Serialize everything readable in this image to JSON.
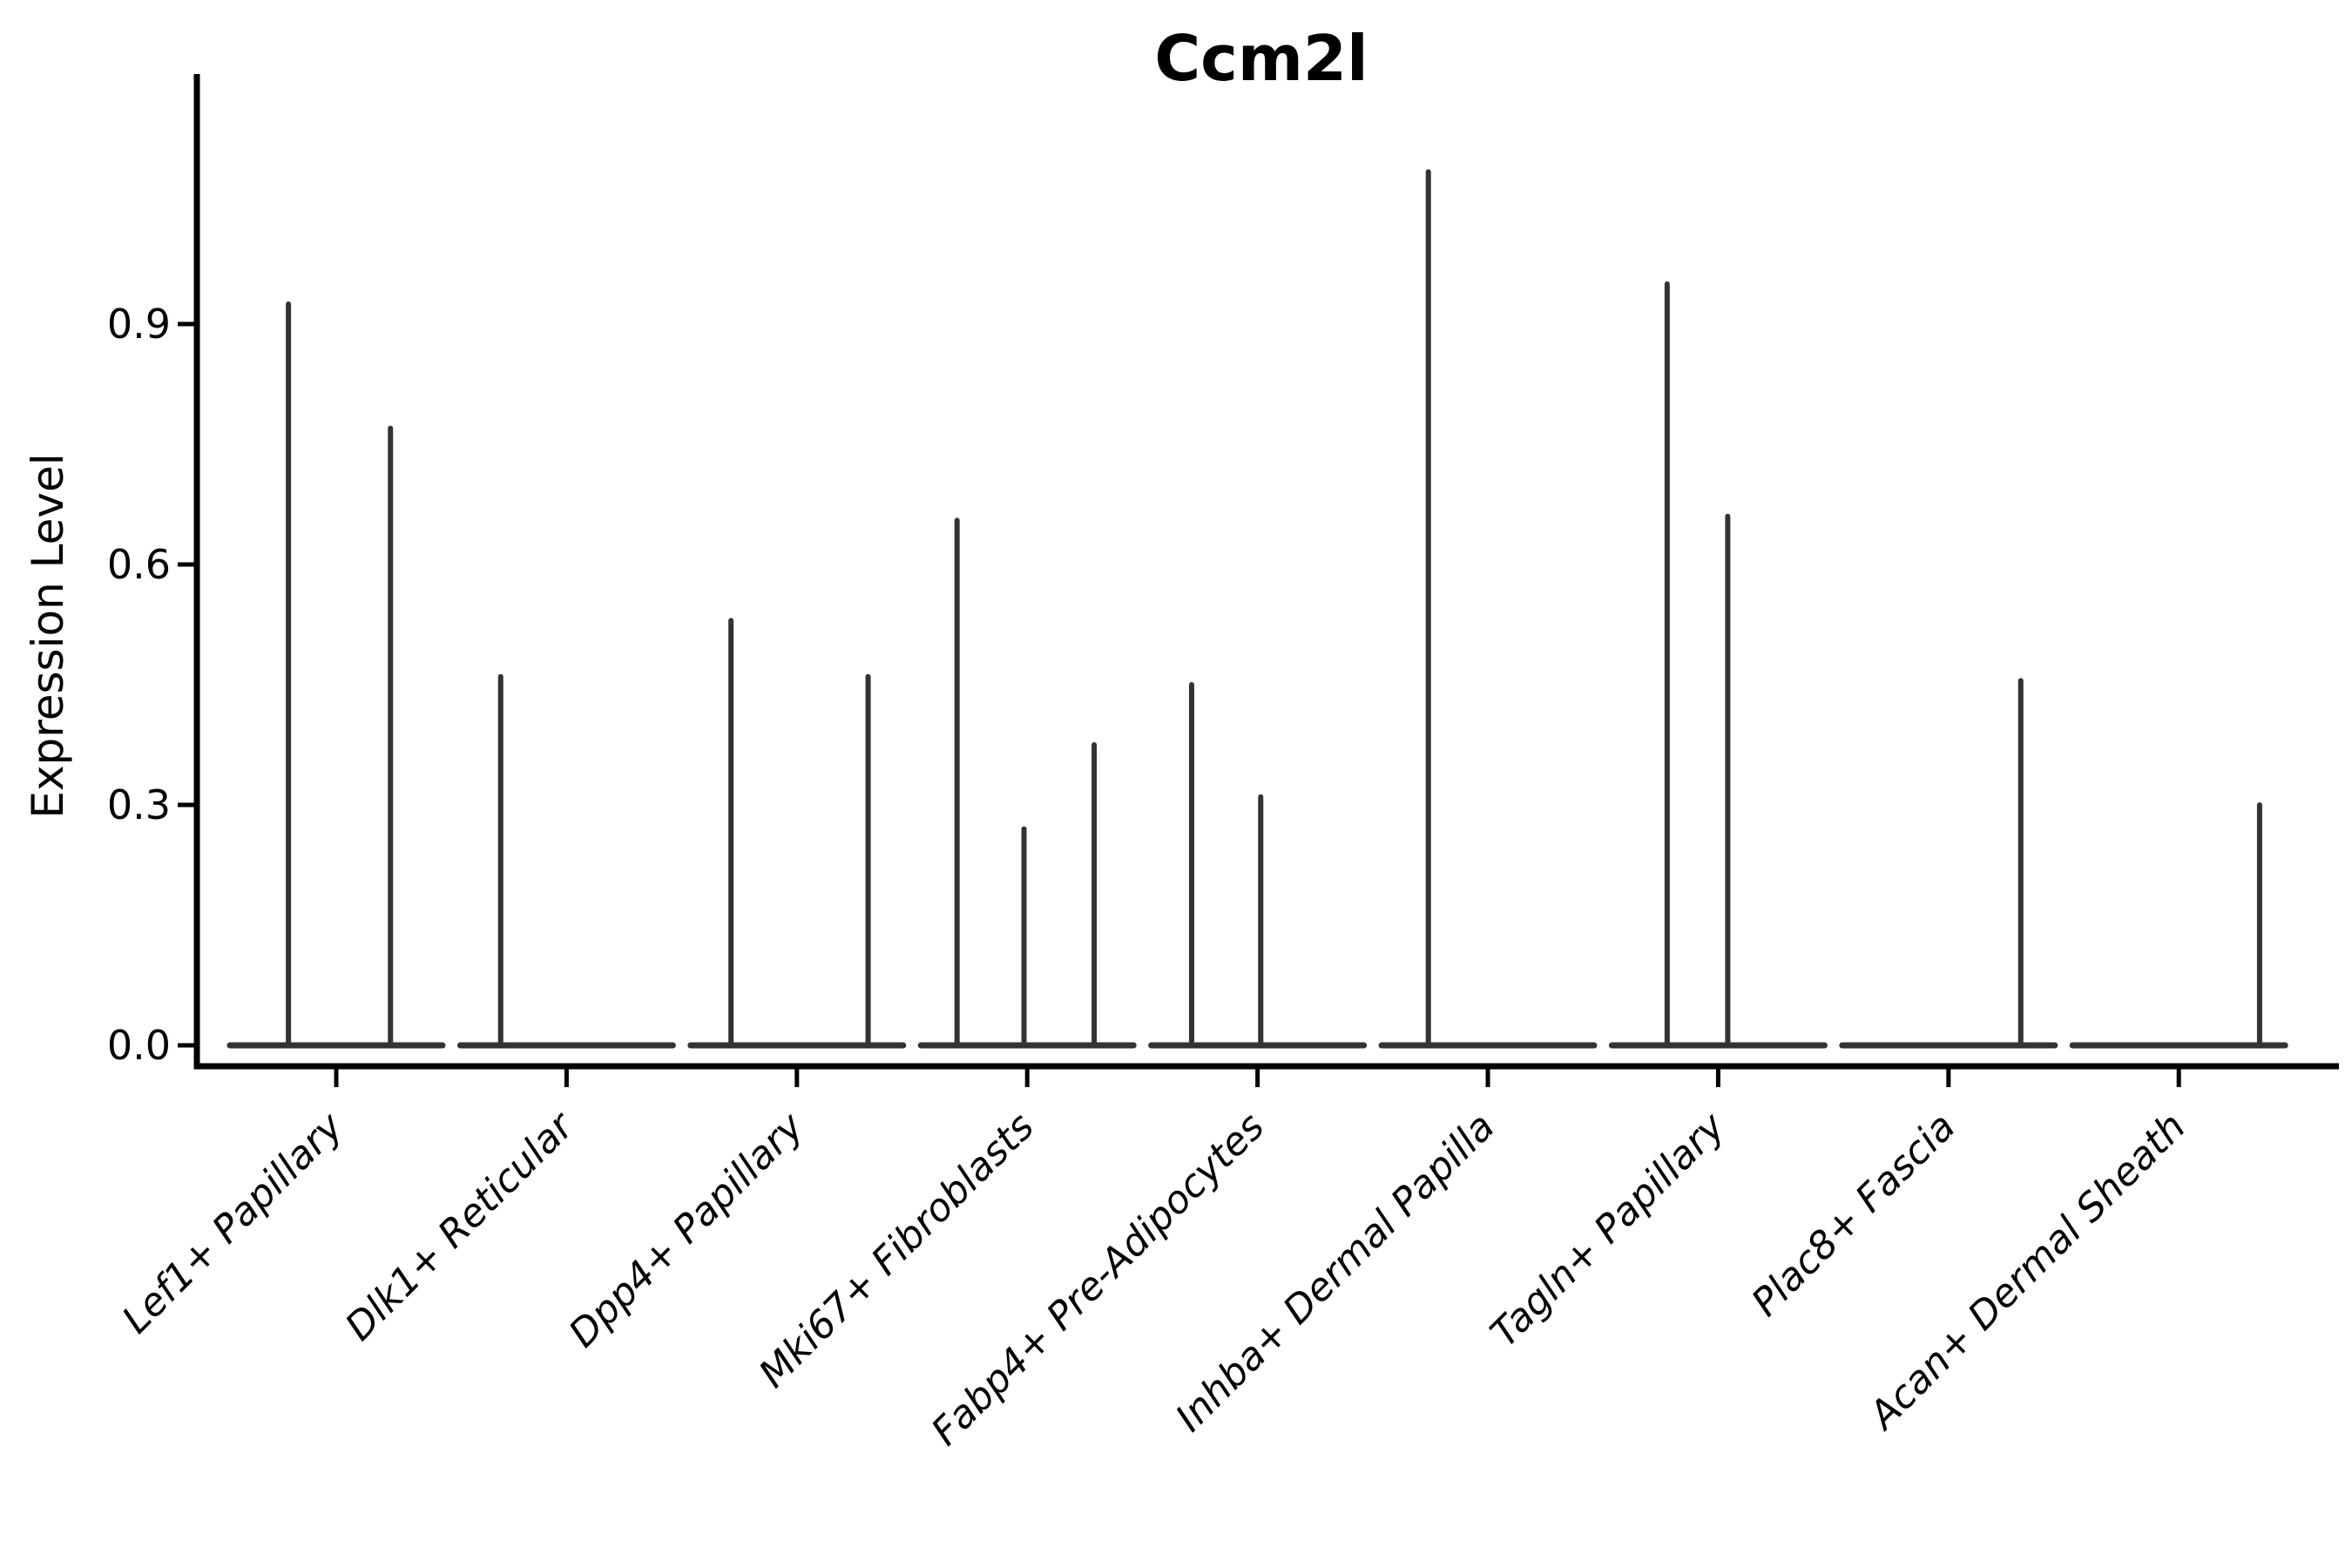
{
  "chart_data": {
    "type": "violin",
    "title": "Ccm2l",
    "ylabel": "Expression Level",
    "xlabel": "",
    "grid": false,
    "legend": null,
    "ylim": [
      -0.03,
      1.21
    ],
    "yticks": [
      {
        "value": 0.0,
        "label": "0.0"
      },
      {
        "value": 0.3,
        "label": "0.3"
      },
      {
        "value": 0.6,
        "label": "0.6"
      },
      {
        "value": 0.9,
        "label": "0.9"
      }
    ],
    "categories": [
      "Lef1+ Papillary",
      "Dlk1+ Reticular",
      "Dpp4+ Papillary",
      "Mki67+ Fibroblasts",
      "Fabp4+ Pre-Adipocytes",
      "Inhba+ Dermal Papilla",
      "Tagln+ Papillary",
      "Plac8+ Fascia",
      "Acan+ Dermal Sheath"
    ],
    "violins": [
      {
        "category": "Lef1+ Papillary",
        "baseline_value": 0.0,
        "spikes": [
          {
            "offset_frac": -0.45,
            "value": 0.925
          },
          {
            "offset_frac": 0.51,
            "value": 0.77
          }
        ]
      },
      {
        "category": "Dlk1+ Reticular",
        "baseline_value": 0.0,
        "spikes": [
          {
            "offset_frac": -0.62,
            "value": 0.46
          }
        ]
      },
      {
        "category": "Dpp4+ Papillary",
        "baseline_value": 0.0,
        "spikes": [
          {
            "offset_frac": -0.62,
            "value": 0.53
          },
          {
            "offset_frac": 0.67,
            "value": 0.46
          }
        ]
      },
      {
        "category": "Mki67+ Fibroblasts",
        "baseline_value": 0.0,
        "spikes": [
          {
            "offset_frac": -0.66,
            "value": 0.655
          },
          {
            "offset_frac": -0.03,
            "value": 0.27
          },
          {
            "offset_frac": 0.63,
            "value": 0.375
          }
        ]
      },
      {
        "category": "Fabp4+ Pre-Adipocytes",
        "baseline_value": 0.0,
        "spikes": [
          {
            "offset_frac": -0.62,
            "value": 0.45
          },
          {
            "offset_frac": 0.03,
            "value": 0.31
          }
        ]
      },
      {
        "category": "Inhba+ Dermal Papilla",
        "baseline_value": 0.0,
        "spikes": [
          {
            "offset_frac": -0.56,
            "value": 1.09
          }
        ]
      },
      {
        "category": "Tagln+ Papillary",
        "baseline_value": 0.0,
        "spikes": [
          {
            "offset_frac": -0.48,
            "value": 0.95
          },
          {
            "offset_frac": 0.09,
            "value": 0.66
          }
        ]
      },
      {
        "category": "Plac8+ Fascia",
        "baseline_value": 0.0,
        "spikes": [
          {
            "offset_frac": 0.68,
            "value": 0.455
          }
        ]
      },
      {
        "category": "Acan+ Dermal Sheath",
        "baseline_value": 0.0,
        "spikes": [
          {
            "offset_frac": 0.76,
            "value": 0.3
          }
        ]
      }
    ],
    "style": {
      "line_color": "#333333",
      "axis_color": "#000000",
      "text_color": "#000000",
      "background": "#ffffff"
    }
  }
}
